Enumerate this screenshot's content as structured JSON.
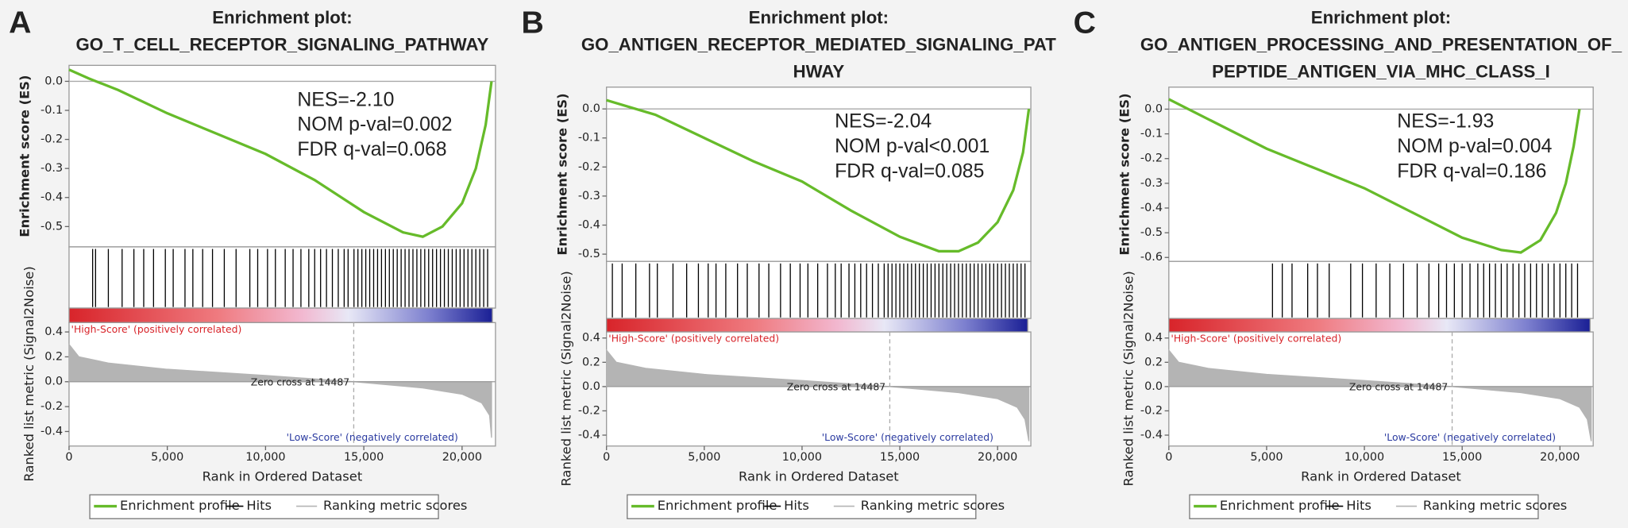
{
  "chart_data": [
    {
      "type": "line",
      "panel": "A",
      "title": [
        "Enrichment plot:",
        "GO_T_CELL_RECEPTOR_SIGNALING_PATHWAY"
      ],
      "annotations": [
        "NES=-2.10",
        "NOM p-val=0.002",
        "FDR  q-val=0.068"
      ],
      "y_label": "Enrichment score (ES)",
      "y2_label": "Ranked list metric (Signal2Noise)",
      "x_label": "Rank in Ordered Dataset",
      "high_label": "'High-Score' (positively correlated)",
      "low_label": "'Low-Score' (negatively correlated)",
      "zero_cross_label": "Zero cross at 14487",
      "zero_cross": 14487,
      "xlim": [
        0,
        21700
      ],
      "xticks": [
        0,
        {
          "value": 5000,
          "label": "5,000"
        },
        {
          "value": 10000,
          "label": "10,000"
        },
        {
          "value": 15000,
          "label": "15,000"
        },
        {
          "value": 20000,
          "label": "20,000"
        }
      ],
      "ylim": [
        -0.57,
        0.055
      ],
      "yticks": [
        {
          "value": 0,
          "label": "0.0"
        },
        -0.1,
        -0.2,
        -0.3,
        -0.4,
        -0.5
      ],
      "y2lim": [
        -0.517,
        0.475
      ],
      "y2ticks": [
        0.4,
        0.2,
        {
          "value": 0,
          "label": "0.0"
        },
        -0.2,
        -0.4
      ],
      "series": [
        {
          "name": "Enrichment profile",
          "color": "#66bb2a",
          "x": [
            0,
            1000,
            2500,
            5000,
            7500,
            10000,
            12500,
            15000,
            17000,
            18000,
            19000,
            20000,
            20700,
            21200,
            21500
          ],
          "values": [
            0.04,
            0.01,
            -0.03,
            -0.11,
            -0.18,
            -0.25,
            -0.34,
            -0.45,
            -0.52,
            -0.535,
            -0.5,
            -0.42,
            -0.3,
            -0.15,
            0.0
          ]
        },
        {
          "name": "Hits",
          "color": "#000000",
          "x": [
            1200,
            1350,
            2000,
            2700,
            3300,
            3800,
            4300,
            4900,
            5300,
            5900,
            6300,
            6800,
            7300,
            7900,
            8500,
            9200,
            9600,
            10100,
            10500,
            11000,
            11400,
            11800,
            12200,
            12500,
            12800,
            13100,
            13400,
            13700,
            14000,
            14200,
            14500,
            14700,
            14900,
            15100,
            15300,
            15500,
            15700,
            15900,
            16100,
            16300,
            16500,
            16700,
            16900,
            17100,
            17300,
            17500,
            17700,
            17900,
            18100,
            18300,
            18500,
            18700,
            18900,
            19100,
            19300,
            19500,
            19700,
            19900,
            20100,
            20300,
            20500,
            20700,
            20900,
            21100,
            21300
          ]
        },
        {
          "name": "Ranking metric scores",
          "color": "#b4b4b4",
          "axis": "y2",
          "x": [
            0,
            500,
            2000,
            5000,
            10000,
            14487,
            18000,
            20000,
            21000,
            21400,
            21500
          ],
          "values": [
            0.3,
            0.2,
            0.15,
            0.1,
            0.05,
            0,
            -0.05,
            -0.1,
            -0.17,
            -0.27,
            -0.45
          ]
        }
      ]
    },
    {
      "type": "line",
      "panel": "B",
      "title": [
        "Enrichment plot:",
        "GO_ANTIGEN_RECEPTOR_MEDIATED_SIGNALING_PAT",
        "HWAY"
      ],
      "annotations": [
        "NES=-2.04",
        "NOM p-val<0.001",
        "FDR  q-val=0.085"
      ],
      "y_label": "Enrichment score (ES)",
      "y2_label": "Ranked list metric (Signal2Noise)",
      "x_label": "Rank in Ordered Dataset",
      "high_label": "'High-Score' (positively correlated)",
      "low_label": "'Low-Score' (negatively correlated)",
      "zero_cross_label": "Zero cross at 14487",
      "zero_cross": 14487,
      "xlim": [
        0,
        21700
      ],
      "xticks": [
        0,
        {
          "value": 5000,
          "label": "5,000"
        },
        {
          "value": 10000,
          "label": "10,000"
        },
        {
          "value": 15000,
          "label": "15,000"
        },
        {
          "value": 20000,
          "label": "20,000"
        }
      ],
      "ylim": [
        -0.525,
        0.075
      ],
      "yticks": [
        {
          "value": 0,
          "label": "0.0"
        },
        -0.1,
        -0.2,
        -0.3,
        -0.4,
        -0.5
      ],
      "y2lim": [
        -0.49,
        0.45
      ],
      "y2ticks": [
        0.4,
        0.2,
        {
          "value": 0,
          "label": "0.0"
        },
        -0.2,
        -0.4
      ],
      "series": [
        {
          "name": "Enrichment profile",
          "color": "#66bb2a",
          "x": [
            0,
            2500,
            5000,
            7500,
            10000,
            12500,
            15000,
            17000,
            18000,
            19000,
            20000,
            20800,
            21300,
            21600
          ],
          "values": [
            0.03,
            -0.02,
            -0.1,
            -0.18,
            -0.25,
            -0.35,
            -0.44,
            -0.49,
            -0.49,
            -0.46,
            -0.39,
            -0.28,
            -0.15,
            0.0
          ]
        },
        {
          "name": "Hits",
          "color": "#000000",
          "x": [
            300,
            800,
            1500,
            2200,
            2600,
            3400,
            4100,
            4700,
            5200,
            5600,
            6100,
            6700,
            7200,
            7800,
            8300,
            8900,
            9400,
            9900,
            10300,
            10800,
            11300,
            11700,
            12000,
            12400,
            12700,
            13000,
            13300,
            13600,
            13900,
            14200,
            14400,
            14600,
            14800,
            15000,
            15200,
            15400,
            15600,
            15800,
            16000,
            16200,
            16400,
            16600,
            16800,
            17000,
            17200,
            17400,
            17600,
            17800,
            18000,
            18200,
            18400,
            18600,
            18800,
            19000,
            19200,
            19400,
            19600,
            19800,
            20000,
            20200,
            20400,
            20600,
            20800,
            21000,
            21200,
            21400
          ]
        },
        {
          "name": "Ranking metric scores",
          "color": "#b4b4b4",
          "axis": "y2",
          "x": [
            0,
            500,
            2000,
            5000,
            10000,
            14487,
            18000,
            20000,
            21000,
            21400,
            21600
          ],
          "values": [
            0.3,
            0.2,
            0.15,
            0.1,
            0.05,
            0,
            -0.05,
            -0.1,
            -0.17,
            -0.27,
            -0.45
          ]
        }
      ]
    },
    {
      "type": "line",
      "panel": "C",
      "title": [
        "Enrichment plot:",
        "GO_ANTIGEN_PROCESSING_AND_PRESENTATION_OF_",
        "PEPTIDE_ANTIGEN_VIA_MHC_CLASS_I"
      ],
      "annotations": [
        "NES=-1.93",
        "NOM p-val=0.004",
        "FDR  q-val=0.186"
      ],
      "y_label": "Enrichment score (ES)",
      "y2_label": "Ranked list metric (Signal2Noise)",
      "x_label": "Rank in Ordered Dataset",
      "high_label": "'High-Score' (positively correlated)",
      "low_label": "'Low-Score' (negatively correlated)",
      "zero_cross_label": "Zero cross at 14487",
      "zero_cross": 14487,
      "xlim": [
        0,
        21700
      ],
      "xticks": [
        0,
        {
          "value": 5000,
          "label": "5,000"
        },
        {
          "value": 10000,
          "label": "10,000"
        },
        {
          "value": 15000,
          "label": "15,000"
        },
        {
          "value": 20000,
          "label": "20,000"
        }
      ],
      "ylim": [
        -0.616,
        0.089
      ],
      "yticks": [
        {
          "value": 0,
          "label": "0.0"
        },
        -0.1,
        -0.2,
        -0.3,
        -0.4,
        -0.5,
        -0.6
      ],
      "y2lim": [
        -0.49,
        0.45
      ],
      "y2ticks": [
        0.4,
        0.2,
        {
          "value": 0,
          "label": "0.0"
        },
        -0.2,
        -0.4
      ],
      "series": [
        {
          "name": "Enrichment profile",
          "color": "#66bb2a",
          "x": [
            0,
            2500,
            5000,
            7500,
            10000,
            12500,
            15000,
            17000,
            18000,
            19000,
            19800,
            20300,
            20700,
            21000
          ],
          "values": [
            0.04,
            -0.06,
            -0.16,
            -0.24,
            -0.32,
            -0.42,
            -0.52,
            -0.57,
            -0.58,
            -0.53,
            -0.42,
            -0.3,
            -0.15,
            0.0
          ]
        },
        {
          "name": "Hits",
          "color": "#000000",
          "x": [
            5300,
            5800,
            6300,
            7100,
            7600,
            8200,
            9300,
            9900,
            10600,
            11300,
            12000,
            12700,
            13300,
            13800,
            14200,
            14600,
            15000,
            15400,
            15800,
            16100,
            16400,
            16700,
            17000,
            17300,
            17600,
            17900,
            18200,
            18500,
            18800,
            19100,
            19400,
            19700,
            20000,
            20300,
            20600,
            20900
          ]
        },
        {
          "name": "Ranking metric scores",
          "color": "#b4b4b4",
          "axis": "y2",
          "x": [
            0,
            500,
            2000,
            5000,
            10000,
            14487,
            18000,
            20000,
            21000,
            21400,
            21600
          ],
          "values": [
            0.3,
            0.2,
            0.15,
            0.1,
            0.05,
            0,
            -0.05,
            -0.1,
            -0.17,
            -0.27,
            -0.45
          ]
        }
      ]
    }
  ]
}
